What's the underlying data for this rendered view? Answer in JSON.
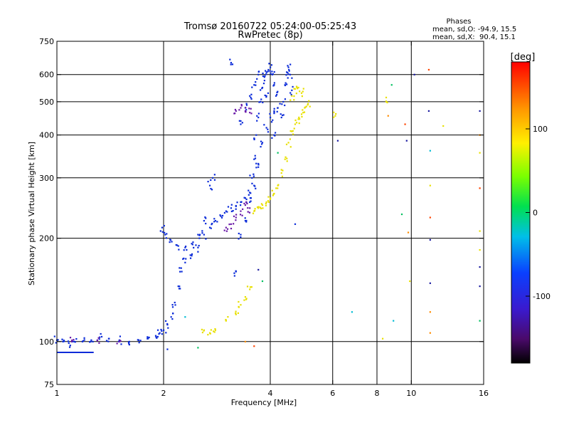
{
  "chart_data": {
    "type": "scatter",
    "title": "Tromsø 20160722 05:24:00-05:25:43",
    "subtitle": "RwPretec (8p)",
    "phases_box": {
      "heading": "Phases",
      "line_o": "mean, sd,O: -94.9, 15.5",
      "line_x": "mean, sd,X:  90.4, 15.1"
    },
    "xlabel": "Frequency [MHz]",
    "ylabel": "Stationary phase Virtual Height [km]",
    "x_scale": "log",
    "y_scale": "log",
    "xlim": [
      1,
      16
    ],
    "ylim": [
      75,
      750
    ],
    "x_ticks": [
      1,
      2,
      4,
      6,
      8,
      10,
      16
    ],
    "x_gridlines": [
      2,
      4,
      6,
      8,
      10
    ],
    "y_ticks": [
      75,
      100,
      200,
      300,
      400,
      500,
      600,
      750
    ],
    "y_gridlines": [
      100,
      200,
      300,
      400,
      500,
      600
    ],
    "grid": true,
    "colorbar": {
      "label": "[deg]",
      "range": [
        -180,
        180
      ],
      "ticks": [
        -100,
        0,
        100
      ],
      "colormap": "rainbow (black-purple-blue-cyan-green-yellow-red)"
    },
    "series": [
      {
        "name": "O",
        "phase_deg": -110,
        "color": "#0a2ad8",
        "points": [
          [
            1.0,
            101
          ],
          [
            1.04,
            100
          ],
          [
            1.08,
            99
          ],
          [
            1.12,
            100
          ],
          [
            1.18,
            100
          ],
          [
            1.25,
            101
          ],
          [
            1.32,
            103
          ],
          [
            1.4,
            102
          ],
          [
            1.5,
            101
          ],
          [
            1.6,
            100
          ],
          [
            1.7,
            101
          ],
          [
            1.8,
            102
          ],
          [
            1.9,
            104
          ],
          [
            1.95,
            106
          ],
          [
            2.0,
            108
          ],
          [
            2.05,
            112
          ],
          [
            2.1,
            118
          ],
          [
            2.15,
            130
          ],
          [
            2.2,
            145
          ],
          [
            2.25,
            160
          ],
          [
            2.3,
            170
          ],
          [
            2.4,
            178
          ],
          [
            2.5,
            188
          ],
          [
            2.6,
            205
          ],
          [
            2.7,
            215
          ],
          [
            2.8,
            225
          ],
          [
            2.9,
            232
          ],
          [
            3.0,
            240
          ],
          [
            3.1,
            245
          ],
          [
            3.2,
            248
          ],
          [
            3.3,
            255
          ],
          [
            3.4,
            262
          ],
          [
            3.5,
            272
          ],
          [
            3.55,
            300
          ],
          [
            3.6,
            340
          ],
          [
            3.65,
            400
          ],
          [
            3.7,
            450
          ],
          [
            3.75,
            500
          ],
          [
            3.8,
            550
          ],
          [
            3.85,
            590
          ],
          [
            3.9,
            610
          ],
          [
            3.95,
            620
          ],
          [
            4.0,
            630
          ],
          [
            4.05,
            600
          ],
          [
            4.1,
            560
          ],
          [
            4.15,
            520
          ],
          [
            4.2,
            480
          ],
          [
            4.3,
            450
          ],
          [
            4.35,
            500
          ],
          [
            4.4,
            560
          ],
          [
            4.45,
            610
          ],
          [
            4.5,
            630
          ],
          [
            4.55,
            600
          ],
          [
            4.6,
            540
          ],
          [
            1.98,
            215
          ],
          [
            2.02,
            205
          ],
          [
            2.08,
            195
          ],
          [
            2.2,
            190
          ],
          [
            2.3,
            188
          ],
          [
            2.4,
            193
          ],
          [
            2.5,
            205
          ],
          [
            2.6,
            225
          ],
          [
            2.7,
            285
          ],
          [
            2.75,
            300
          ],
          [
            3.2,
            160
          ],
          [
            3.3,
            205
          ],
          [
            3.4,
            225
          ],
          [
            3.5,
            255
          ],
          [
            3.6,
            285
          ],
          [
            3.7,
            330
          ],
          [
            3.8,
            380
          ],
          [
            3.9,
            420
          ],
          [
            4.0,
            450
          ],
          [
            4.1,
            400
          ],
          [
            3.1,
            650
          ],
          [
            3.3,
            430
          ],
          [
            3.4,
            480
          ],
          [
            3.5,
            520
          ],
          [
            3.6,
            560
          ],
          [
            3.7,
            600
          ],
          [
            3.9,
            520
          ],
          [
            4.1,
            470
          ]
        ]
      },
      {
        "name": "X",
        "phase_deg": 95,
        "color": "#e8e000",
        "points": [
          [
            3.6,
            240
          ],
          [
            3.7,
            245
          ],
          [
            3.8,
            250
          ],
          [
            3.9,
            255
          ],
          [
            4.0,
            262
          ],
          [
            4.1,
            270
          ],
          [
            4.2,
            285
          ],
          [
            4.3,
            310
          ],
          [
            4.4,
            340
          ],
          [
            4.5,
            380
          ],
          [
            4.6,
            410
          ],
          [
            4.7,
            430
          ],
          [
            4.8,
            445
          ],
          [
            4.9,
            460
          ],
          [
            5.0,
            480
          ],
          [
            5.1,
            490
          ],
          [
            2.6,
            108
          ],
          [
            2.7,
            106
          ],
          [
            2.8,
            108
          ],
          [
            3.0,
            115
          ],
          [
            3.2,
            120
          ],
          [
            3.3,
            128
          ],
          [
            3.4,
            135
          ],
          [
            3.5,
            142
          ],
          [
            4.6,
            520
          ],
          [
            4.7,
            545
          ],
          [
            4.8,
            550
          ],
          [
            4.9,
            530
          ],
          [
            6.1,
            455
          ],
          [
            8.5,
            500
          ]
        ]
      },
      {
        "name": "O (purple)",
        "phase_deg": -140,
        "color": "#6a1aa8",
        "points": [
          [
            3.0,
            215
          ],
          [
            3.1,
            220
          ],
          [
            3.2,
            230
          ],
          [
            3.3,
            240
          ],
          [
            3.4,
            250
          ],
          [
            3.5,
            245
          ],
          [
            3.2,
            470
          ],
          [
            3.3,
            480
          ],
          [
            3.4,
            470
          ],
          [
            3.5,
            465
          ],
          [
            1.1,
            100
          ],
          [
            1.3,
            101
          ],
          [
            1.5,
            100
          ]
        ]
      }
    ],
    "scattered_points": [
      {
        "f": 6.2,
        "h": 385,
        "color": "#1a1aa0"
      },
      {
        "f": 6.8,
        "h": 122,
        "color": "#00bcd4"
      },
      {
        "f": 8.3,
        "h": 102,
        "color": "#e8e000"
      },
      {
        "f": 8.6,
        "h": 455,
        "color": "#ff8c00"
      },
      {
        "f": 8.8,
        "h": 560,
        "color": "#00c060"
      },
      {
        "f": 8.9,
        "h": 115,
        "color": "#00bcd4"
      },
      {
        "f": 9.4,
        "h": 235,
        "color": "#00c060"
      },
      {
        "f": 9.6,
        "h": 430,
        "color": "#ff4400"
      },
      {
        "f": 9.7,
        "h": 385,
        "color": "#1a1aa0"
      },
      {
        "f": 9.8,
        "h": 208,
        "color": "#ff8c00"
      },
      {
        "f": 9.9,
        "h": 150,
        "color": "#e8e000"
      },
      {
        "f": 10.2,
        "h": 600,
        "color": "#1a1aa0"
      },
      {
        "f": 11.2,
        "h": 620,
        "color": "#ff4400"
      },
      {
        "f": 11.2,
        "h": 470,
        "color": "#1a1aa0"
      },
      {
        "f": 11.3,
        "h": 360,
        "color": "#00bcd4"
      },
      {
        "f": 11.3,
        "h": 285,
        "color": "#e8e000"
      },
      {
        "f": 11.3,
        "h": 230,
        "color": "#ff4400"
      },
      {
        "f": 11.3,
        "h": 198,
        "color": "#1a1aa0"
      },
      {
        "f": 11.3,
        "h": 148,
        "color": "#1a1aa0"
      },
      {
        "f": 11.3,
        "h": 122,
        "color": "#ff8c00"
      },
      {
        "f": 11.3,
        "h": 106,
        "color": "#ff8c00"
      },
      {
        "f": 12.3,
        "h": 425,
        "color": "#e8e000"
      },
      {
        "f": 15.6,
        "h": 470,
        "color": "#1a1aa0"
      },
      {
        "f": 15.6,
        "h": 400,
        "color": "#ff8c00"
      },
      {
        "f": 15.6,
        "h": 355,
        "color": "#e8e000"
      },
      {
        "f": 15.6,
        "h": 280,
        "color": "#ff4400"
      },
      {
        "f": 15.6,
        "h": 210,
        "color": "#e8e000"
      },
      {
        "f": 15.6,
        "h": 185,
        "color": "#e8e000"
      },
      {
        "f": 15.6,
        "h": 165,
        "color": "#1a1aa0"
      },
      {
        "f": 15.6,
        "h": 145,
        "color": "#1a1aa0"
      },
      {
        "f": 15.6,
        "h": 115,
        "color": "#00c060"
      },
      {
        "f": 2.05,
        "h": 95,
        "color": "#0a2ad8"
      },
      {
        "f": 2.5,
        "h": 96,
        "color": "#00c060"
      },
      {
        "f": 2.3,
        "h": 118,
        "color": "#00bcd4"
      },
      {
        "f": 3.7,
        "h": 162,
        "color": "#1a1aa0"
      },
      {
        "f": 3.8,
        "h": 150,
        "color": "#00c060"
      },
      {
        "f": 4.2,
        "h": 355,
        "color": "#00c060"
      },
      {
        "f": 4.7,
        "h": 220,
        "color": "#0a2ad8"
      },
      {
        "f": 3.4,
        "h": 100,
        "color": "#ff8c00"
      },
      {
        "f": 3.6,
        "h": 97,
        "color": "#ff4400"
      }
    ],
    "baseline_segment": {
      "f_start": 1.0,
      "f_end": 1.27,
      "h": 93,
      "color": "#0a2ad8"
    }
  }
}
